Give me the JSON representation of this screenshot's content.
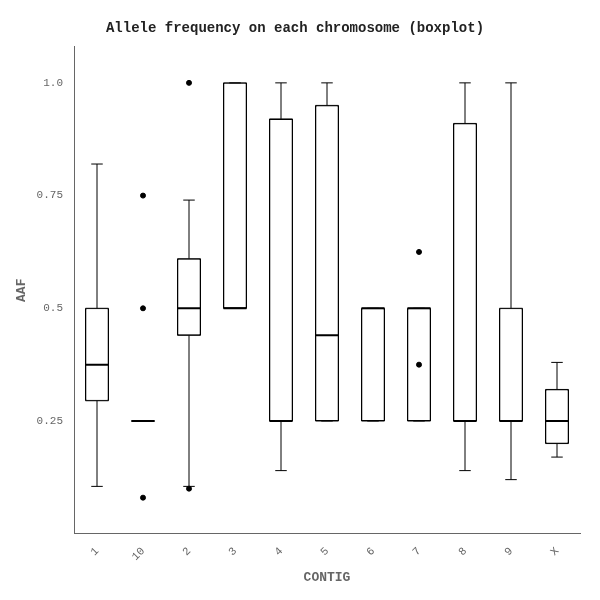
{
  "chart_data": {
    "type": "boxplot",
    "title": "Allele frequency on each chromosome (boxplot)",
    "xlabel": "CONTIG",
    "ylabel": "AAF",
    "categories": [
      "1",
      "10",
      "2",
      "3",
      "4",
      "5",
      "6",
      "7",
      "8",
      "9",
      "X"
    ],
    "values": [
      {
        "med": 0.375,
        "q1": 0.295,
        "q3": 0.5,
        "whislo": 0.105,
        "whishi": 0.82,
        "fliers": []
      },
      {
        "med": 0.25,
        "q1": 0.25,
        "q3": 0.25,
        "whislo": 0.25,
        "whishi": 0.25,
        "fliers": [
          0.08,
          0.5,
          0.75
        ]
      },
      {
        "med": 0.5,
        "q1": 0.44,
        "q3": 0.61,
        "whislo": 0.105,
        "whishi": 0.74,
        "fliers": [
          1.0,
          0.1
        ]
      },
      {
        "med": 0.5,
        "q1": 0.5,
        "q3": 1.0,
        "whislo": 0.5,
        "whishi": 1.0,
        "fliers": []
      },
      {
        "med": 0.25,
        "q1": 0.25,
        "q3": 0.92,
        "whislo": 0.14,
        "whishi": 1.0,
        "fliers": []
      },
      {
        "med": 0.44,
        "q1": 0.25,
        "q3": 0.95,
        "whislo": 0.25,
        "whishi": 1.0,
        "fliers": []
      },
      {
        "med": 0.5,
        "q1": 0.25,
        "q3": 0.5,
        "whislo": 0.25,
        "whishi": 0.5,
        "fliers": []
      },
      {
        "med": 0.5,
        "q1": 0.25,
        "q3": 0.5,
        "whislo": 0.25,
        "whishi": 0.5,
        "fliers": [
          0.375,
          0.625
        ]
      },
      {
        "med": 0.25,
        "q1": 0.25,
        "q3": 0.91,
        "whislo": 0.14,
        "whishi": 1.0,
        "fliers": []
      },
      {
        "med": 0.25,
        "q1": 0.25,
        "q3": 0.5,
        "whislo": 0.12,
        "whishi": 1.0,
        "fliers": []
      },
      {
        "med": 0.25,
        "q1": 0.2,
        "q3": 0.32,
        "whislo": 0.17,
        "whishi": 0.38,
        "fliers": []
      }
    ],
    "color": "#000000",
    "ylim": [
      0.0,
      1.08
    ],
    "yticks": [
      0.25,
      0.5,
      0.75,
      {
        "value": 1.0,
        "label": "1.0"
      }
    ],
    "grid": false
  }
}
